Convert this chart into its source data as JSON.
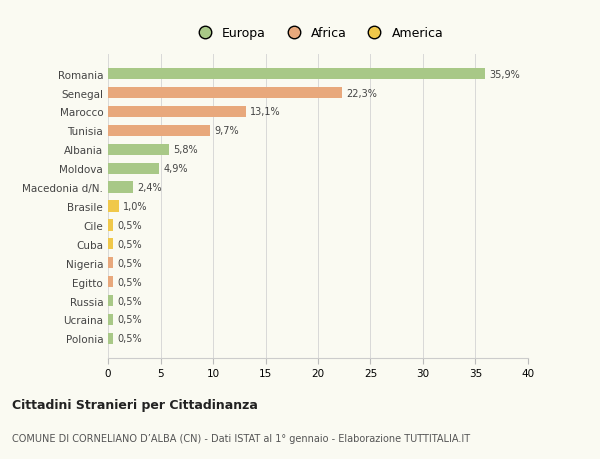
{
  "countries": [
    "Romania",
    "Senegal",
    "Marocco",
    "Tunisia",
    "Albania",
    "Moldova",
    "Macedonia d/N.",
    "Brasile",
    "Cile",
    "Cuba",
    "Nigeria",
    "Egitto",
    "Russia",
    "Ucraina",
    "Polonia"
  ],
  "values": [
    35.9,
    22.3,
    13.1,
    9.7,
    5.8,
    4.9,
    2.4,
    1.0,
    0.5,
    0.5,
    0.5,
    0.5,
    0.5,
    0.5,
    0.5
  ],
  "labels": [
    "35,9%",
    "22,3%",
    "13,1%",
    "9,7%",
    "5,8%",
    "4,9%",
    "2,4%",
    "1,0%",
    "0,5%",
    "0,5%",
    "0,5%",
    "0,5%",
    "0,5%",
    "0,5%",
    "0,5%"
  ],
  "colors": [
    "#a8c887",
    "#e8a87c",
    "#e8a87c",
    "#e8a87c",
    "#a8c887",
    "#a8c887",
    "#a8c887",
    "#f0c84a",
    "#f0c84a",
    "#f0c84a",
    "#e8a87c",
    "#e8a87c",
    "#a8c887",
    "#a8c887",
    "#a8c887"
  ],
  "categories": [
    "Europa",
    "Africa",
    "America"
  ],
  "legend_colors": [
    "#a8c887",
    "#e8a87c",
    "#f0c84a"
  ],
  "xlim": [
    0,
    40
  ],
  "xticks": [
    0,
    5,
    10,
    15,
    20,
    25,
    30,
    35,
    40
  ],
  "title": "Cittadini Stranieri per Cittadinanza",
  "subtitle": "COMUNE DI CORNELIANO D’ALBA (CN) - Dati ISTAT al 1° gennaio - Elaborazione TUTTITALIA.IT",
  "bg_color": "#fafaf2",
  "grid_color": "#d8d8d8"
}
